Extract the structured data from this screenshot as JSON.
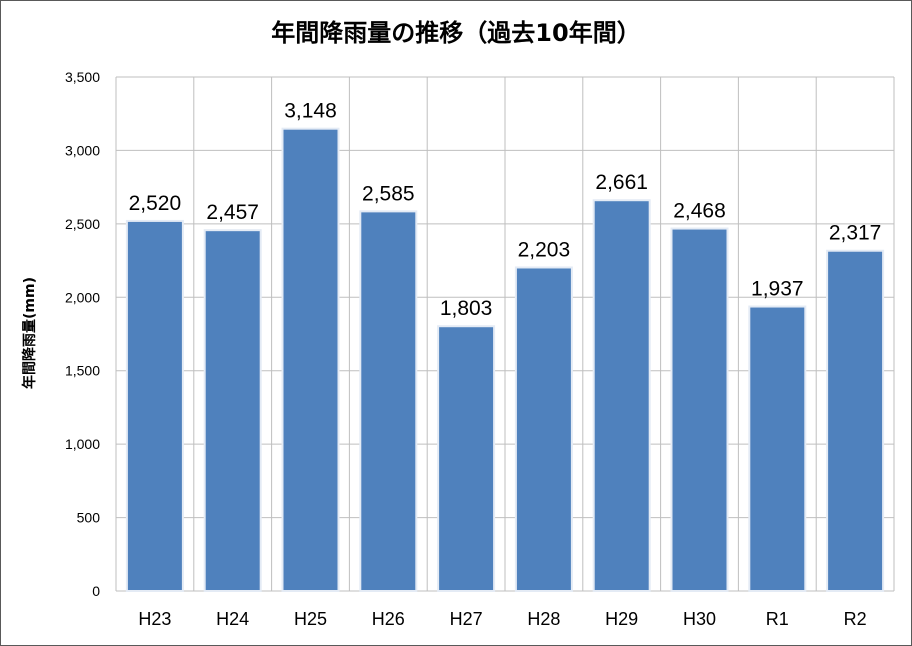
{
  "chart_data": {
    "type": "bar",
    "title": "年間降雨量の推移（過去10年間）",
    "xlabel": "",
    "ylabel": "年間降雨量(mm)",
    "categories": [
      "H23",
      "H24",
      "H25",
      "H26",
      "H27",
      "H28",
      "H29",
      "H30",
      "R1",
      "R2"
    ],
    "values": [
      2520,
      2457,
      3148,
      2585,
      1803,
      2203,
      2661,
      2468,
      1937,
      2317
    ],
    "value_labels": [
      "2,520",
      "2,457",
      "3,148",
      "2,585",
      "1,803",
      "2,203",
      "2,661",
      "2,468",
      "1,937",
      "2,317"
    ],
    "ylim": [
      0,
      3500
    ],
    "yticks": [
      0,
      500,
      1000,
      1500,
      2000,
      2500,
      3000,
      3500
    ],
    "ytick_labels": [
      "0",
      "500",
      "1,000",
      "1,500",
      "2,000",
      "2,500",
      "3,000",
      "3,500"
    ],
    "grid": true,
    "legend": "none",
    "bar_color": "#4f81bd"
  }
}
